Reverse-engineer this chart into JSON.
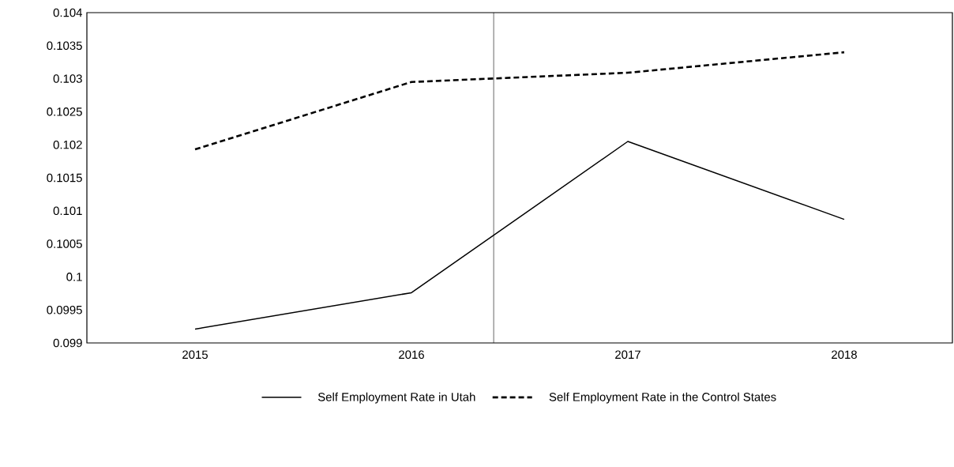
{
  "chart_data": {
    "type": "line",
    "x": [
      2015,
      2016,
      2017,
      2018
    ],
    "series": [
      {
        "name": "Self Employment Rate in Utah",
        "color": "#000000",
        "line_style": "solid",
        "values": [
          0.09921,
          0.09976,
          0.10205,
          0.10087
        ]
      },
      {
        "name": "Self Employment Rate in the Control States",
        "color": "#000000",
        "line_style": "dashed",
        "values": [
          0.10193,
          0.10295,
          0.10309,
          0.1034
        ]
      }
    ],
    "xlim": [
      2014.5,
      2018.5
    ],
    "xticks": [
      2015,
      2016,
      2017,
      2018
    ],
    "ylim": [
      0.099,
      0.104
    ],
    "yticks": [
      0.099,
      0.0995,
      0.1,
      0.1005,
      0.101,
      0.1015,
      0.102,
      0.1025,
      0.103,
      0.1035,
      0.104
    ],
    "ref_lines": [
      {
        "axis": "x",
        "value": 2016.38,
        "color": "#000000"
      }
    ],
    "grid": false,
    "legend": "bottom"
  }
}
